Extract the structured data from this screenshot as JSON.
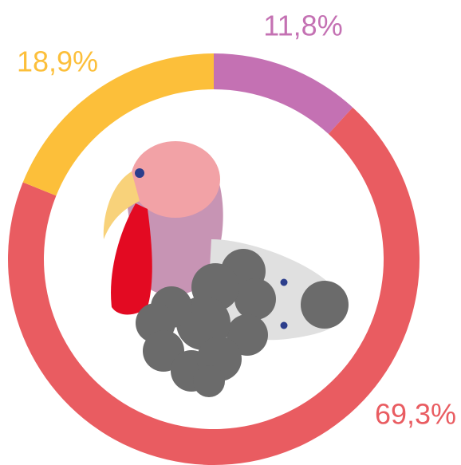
{
  "chart_data": {
    "type": "donut",
    "values": [
      11.8,
      69.3,
      18.9
    ],
    "value_labels": [
      "11,8%",
      "69,3%",
      "18,9%"
    ],
    "colors": [
      "#c471b3",
      "#e95c61",
      "#fcbf3a"
    ]
  }
}
